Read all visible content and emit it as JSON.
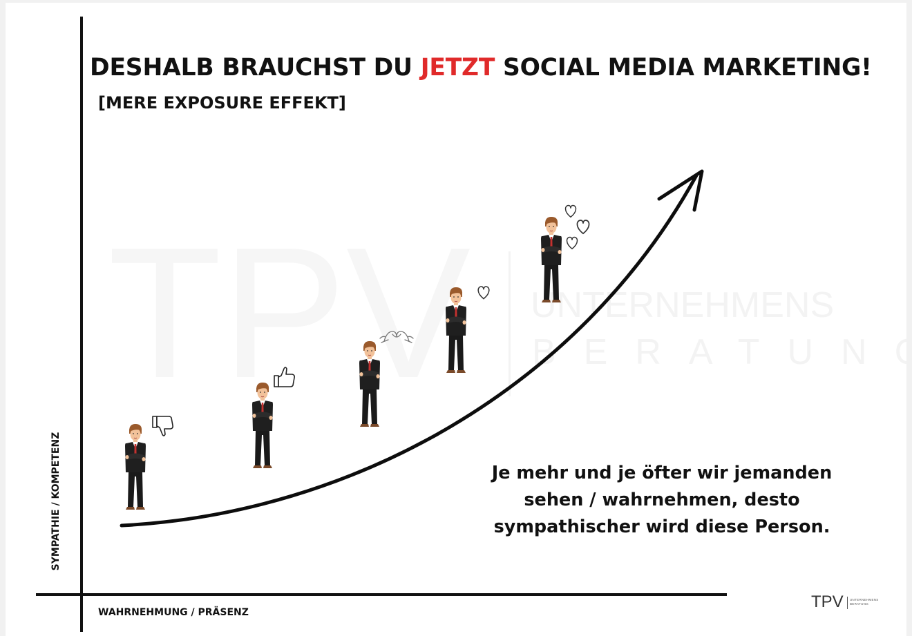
{
  "title": {
    "part1": "DESHALB BRAUCHST DU ",
    "accent": "JETZT",
    "part2": " SOCIAL MEDIA MARKETING!"
  },
  "subtitle": "[MERE EXPOSURE EFFEKT]",
  "y_axis_label": "SYMPATHIE / KOMPETENZ",
  "x_axis_label": "WAHRNEHMUNG / PRÄSENZ",
  "caption": {
    "line1": "Je mehr und je öfter wir jemanden",
    "line2": "sehen / wahrnehmen, desto",
    "line3": "sympathischer wird diese Person."
  },
  "watermark": {
    "brand": "TPV",
    "line1": "UNTERNEHMENS",
    "line2": "BERATUNG"
  },
  "logo": {
    "brand": "TPV",
    "small1": "UNTERNEHMENS",
    "small2": "BERATUNG"
  },
  "colors": {
    "accent": "#e02a2a",
    "text": "#111111",
    "background": "#ffffff"
  },
  "figures": [
    {
      "reaction_icon": "thumbs-down-icon"
    },
    {
      "reaction_icon": "thumbs-up-icon"
    },
    {
      "reaction_icon": "heart-hands-icon"
    },
    {
      "reaction_icon": "heart-icon"
    },
    {
      "reaction_icon": "three-hearts-icon"
    }
  ]
}
